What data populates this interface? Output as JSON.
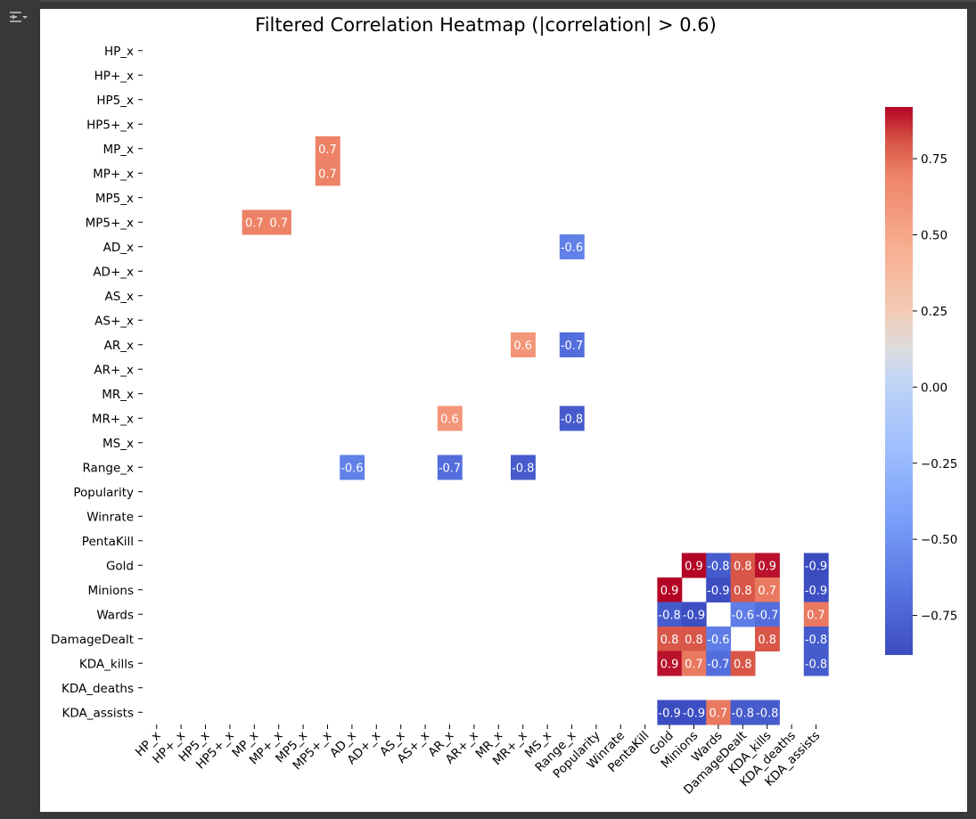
{
  "chart_data": {
    "type": "heatmap",
    "title": "Filtered Correlation Heatmap (|correlation| > 0.6)",
    "labels": [
      "HP_x",
      "HP+_x",
      "HP5_x",
      "HP5+_x",
      "MP_x",
      "MP+_x",
      "MP5_x",
      "MP5+_x",
      "AD_x",
      "AD+_x",
      "AS_x",
      "AS+_x",
      "AR_x",
      "AR+_x",
      "MR_x",
      "MR+_x",
      "MS_x",
      "Range_x",
      "Popularity",
      "Winrate",
      "PentaKill",
      "Gold",
      "Minions",
      "Wards",
      "DamageDealt",
      "KDA_kills",
      "KDA_deaths",
      "KDA_assists"
    ],
    "cells": [
      {
        "row": "MP_x",
        "col": "MP5+_x",
        "value": 0.7,
        "label": "0.7"
      },
      {
        "row": "MP+_x",
        "col": "MP5+_x",
        "value": 0.7,
        "label": "0.7"
      },
      {
        "row": "MP5+_x",
        "col": "MP_x",
        "value": 0.7,
        "label": "0.7"
      },
      {
        "row": "MP5+_x",
        "col": "MP+_x",
        "value": 0.7,
        "label": "0.7"
      },
      {
        "row": "AD_x",
        "col": "Range_x",
        "value": -0.6,
        "label": "-0.6"
      },
      {
        "row": "AR_x",
        "col": "MR+_x",
        "value": 0.6,
        "label": "0.6"
      },
      {
        "row": "AR_x",
        "col": "Range_x",
        "value": -0.7,
        "label": "-0.7"
      },
      {
        "row": "MR+_x",
        "col": "AR_x",
        "value": 0.6,
        "label": "0.6"
      },
      {
        "row": "MR+_x",
        "col": "Range_x",
        "value": -0.8,
        "label": "-0.8"
      },
      {
        "row": "Range_x",
        "col": "AD_x",
        "value": -0.6,
        "label": "-0.6"
      },
      {
        "row": "Range_x",
        "col": "AR_x",
        "value": -0.7,
        "label": "-0.7"
      },
      {
        "row": "Range_x",
        "col": "MR+_x",
        "value": -0.8,
        "label": "-0.8"
      },
      {
        "row": "Gold",
        "col": "Minions",
        "value": 0.92,
        "label": "0.9"
      },
      {
        "row": "Gold",
        "col": "Wards",
        "value": -0.8,
        "label": "-0.8"
      },
      {
        "row": "Gold",
        "col": "DamageDealt",
        "value": 0.8,
        "label": "0.8"
      },
      {
        "row": "Gold",
        "col": "KDA_kills",
        "value": 0.9,
        "label": "0.9"
      },
      {
        "row": "Gold",
        "col": "KDA_assists",
        "value": -0.88,
        "label": "-0.9"
      },
      {
        "row": "Minions",
        "col": "Gold",
        "value": 0.92,
        "label": "0.9"
      },
      {
        "row": "Minions",
        "col": "Wards",
        "value": -0.87,
        "label": "-0.9"
      },
      {
        "row": "Minions",
        "col": "DamageDealt",
        "value": 0.8,
        "label": "0.8"
      },
      {
        "row": "Minions",
        "col": "KDA_kills",
        "value": 0.72,
        "label": "0.7"
      },
      {
        "row": "Minions",
        "col": "KDA_assists",
        "value": -0.87,
        "label": "-0.9"
      },
      {
        "row": "Wards",
        "col": "Gold",
        "value": -0.8,
        "label": "-0.8"
      },
      {
        "row": "Wards",
        "col": "Minions",
        "value": -0.87,
        "label": "-0.9"
      },
      {
        "row": "Wards",
        "col": "DamageDealt",
        "value": -0.62,
        "label": "-0.6"
      },
      {
        "row": "Wards",
        "col": "KDA_kills",
        "value": -0.7,
        "label": "-0.7"
      },
      {
        "row": "Wards",
        "col": "KDA_assists",
        "value": 0.72,
        "label": "0.7"
      },
      {
        "row": "DamageDealt",
        "col": "Gold",
        "value": 0.8,
        "label": "0.8"
      },
      {
        "row": "DamageDealt",
        "col": "Minions",
        "value": 0.8,
        "label": "0.8"
      },
      {
        "row": "DamageDealt",
        "col": "Wards",
        "value": -0.62,
        "label": "-0.6"
      },
      {
        "row": "DamageDealt",
        "col": "KDA_kills",
        "value": 0.8,
        "label": "0.8"
      },
      {
        "row": "DamageDealt",
        "col": "KDA_assists",
        "value": -0.8,
        "label": "-0.8"
      },
      {
        "row": "KDA_kills",
        "col": "Gold",
        "value": 0.9,
        "label": "0.9"
      },
      {
        "row": "KDA_kills",
        "col": "Minions",
        "value": 0.72,
        "label": "0.7"
      },
      {
        "row": "KDA_kills",
        "col": "Wards",
        "value": -0.7,
        "label": "-0.7"
      },
      {
        "row": "KDA_kills",
        "col": "DamageDealt",
        "value": 0.8,
        "label": "0.8"
      },
      {
        "row": "KDA_kills",
        "col": "KDA_assists",
        "value": -0.8,
        "label": "-0.8"
      },
      {
        "row": "KDA_assists",
        "col": "Gold",
        "value": -0.88,
        "label": "-0.9"
      },
      {
        "row": "KDA_assists",
        "col": "Minions",
        "value": -0.87,
        "label": "-0.9"
      },
      {
        "row": "KDA_assists",
        "col": "Wards",
        "value": 0.72,
        "label": "0.7"
      },
      {
        "row": "KDA_assists",
        "col": "DamageDealt",
        "value": -0.8,
        "label": "-0.8"
      },
      {
        "row": "KDA_assists",
        "col": "KDA_kills",
        "value": -0.8,
        "label": "-0.8"
      }
    ],
    "colorbar": {
      "colormap": "coolwarm",
      "vmin": -0.88,
      "vmax": 0.92,
      "ticks": [
        0.75,
        0.5,
        0.25,
        0.0,
        -0.25,
        -0.5,
        -0.75
      ],
      "tick_labels": [
        "0.75",
        "0.50",
        "0.25",
        "0.00",
        "−0.25",
        "−0.50",
        "−0.75"
      ]
    },
    "colors": {
      "low": "#3b4cc0",
      "mid": "#dddddd",
      "high": "#b40426"
    }
  }
}
